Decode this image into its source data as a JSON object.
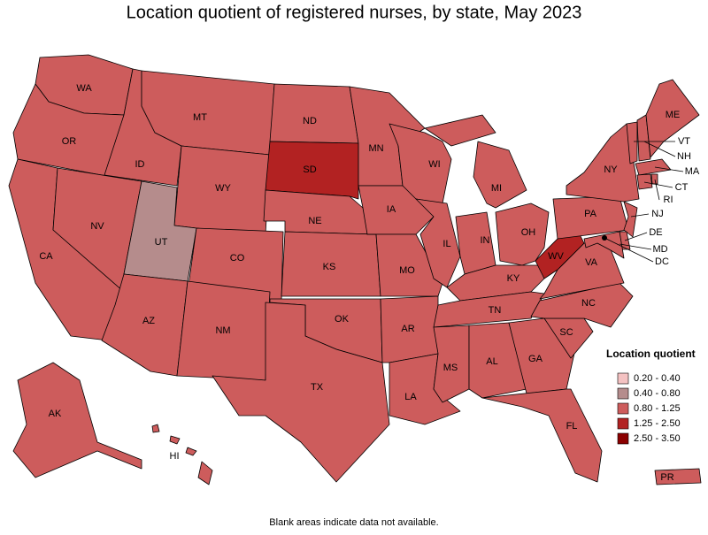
{
  "map": {
    "title": "Location quotient of registered nurses, by state, May 2023",
    "legend": {
      "title": "Location quotient",
      "items": [
        {
          "label": "0.20 - 0.40",
          "color": "#f4c2c2"
        },
        {
          "label": "0.40 - 0.80",
          "color": "#b58c8c"
        },
        {
          "label": "0.80 - 1.25",
          "color": "#cd5c5c"
        },
        {
          "label": "1.25 - 2.50",
          "color": "#b22222"
        },
        {
          "label": "2.50 - 3.50",
          "color": "#8b0000"
        }
      ]
    },
    "states": [
      {
        "label": "WA",
        "range": "0.80 - 1.25"
      },
      {
        "label": "OR",
        "range": "0.80 - 1.25"
      },
      {
        "label": "CA",
        "range": "0.80 - 1.25"
      },
      {
        "label": "NV",
        "range": "0.80 - 1.25"
      },
      {
        "label": "ID",
        "range": "0.80 - 1.25"
      },
      {
        "label": "MT",
        "range": "0.80 - 1.25"
      },
      {
        "label": "WY",
        "range": "0.80 - 1.25"
      },
      {
        "label": "UT",
        "range": "0.40 - 0.80"
      },
      {
        "label": "CO",
        "range": "0.80 - 1.25"
      },
      {
        "label": "AZ",
        "range": "0.80 - 1.25"
      },
      {
        "label": "NM",
        "range": "0.80 - 1.25"
      },
      {
        "label": "ND",
        "range": "0.80 - 1.25"
      },
      {
        "label": "SD",
        "range": "1.25 - 2.50"
      },
      {
        "label": "NE",
        "range": "0.80 - 1.25"
      },
      {
        "label": "KS",
        "range": "0.80 - 1.25"
      },
      {
        "label": "OK",
        "range": "0.80 - 1.25"
      },
      {
        "label": "TX",
        "range": "0.80 - 1.25"
      },
      {
        "label": "MN",
        "range": "0.80 - 1.25"
      },
      {
        "label": "IA",
        "range": "0.80 - 1.25"
      },
      {
        "label": "MO",
        "range": "0.80 - 1.25"
      },
      {
        "label": "AR",
        "range": "0.80 - 1.25"
      },
      {
        "label": "LA",
        "range": "0.80 - 1.25"
      },
      {
        "label": "WI",
        "range": "0.80 - 1.25"
      },
      {
        "label": "IL",
        "range": "0.80 - 1.25"
      },
      {
        "label": "IN",
        "range": "0.80 - 1.25"
      },
      {
        "label": "MI",
        "range": "0.80 - 1.25"
      },
      {
        "label": "OH",
        "range": "0.80 - 1.25"
      },
      {
        "label": "KY",
        "range": "0.80 - 1.25"
      },
      {
        "label": "TN",
        "range": "0.80 - 1.25"
      },
      {
        "label": "MS",
        "range": "0.80 - 1.25"
      },
      {
        "label": "AL",
        "range": "0.80 - 1.25"
      },
      {
        "label": "GA",
        "range": "0.80 - 1.25"
      },
      {
        "label": "FL",
        "range": "0.80 - 1.25"
      },
      {
        "label": "SC",
        "range": "0.80 - 1.25"
      },
      {
        "label": "NC",
        "range": "0.80 - 1.25"
      },
      {
        "label": "VA",
        "range": "0.80 - 1.25"
      },
      {
        "label": "WV",
        "range": "1.25 - 2.50"
      },
      {
        "label": "PA",
        "range": "0.80 - 1.25"
      },
      {
        "label": "NY",
        "range": "0.80 - 1.25"
      },
      {
        "label": "VT",
        "range": "0.80 - 1.25"
      },
      {
        "label": "NH",
        "range": "0.80 - 1.25"
      },
      {
        "label": "ME",
        "range": "0.80 - 1.25"
      },
      {
        "label": "MA",
        "range": "0.80 - 1.25"
      },
      {
        "label": "CT",
        "range": "0.80 - 1.25"
      },
      {
        "label": "RI",
        "range": "0.80 - 1.25"
      },
      {
        "label": "NJ",
        "range": "0.80 - 1.25"
      },
      {
        "label": "DE",
        "range": "0.80 - 1.25"
      },
      {
        "label": "MD",
        "range": "0.80 - 1.25"
      },
      {
        "label": "DC",
        "range": "0.80 - 1.25"
      },
      {
        "label": "AK",
        "range": "0.80 - 1.25"
      },
      {
        "label": "HI",
        "range": "0.80 - 1.25"
      },
      {
        "label": "PR",
        "range": "0.80 - 1.25"
      }
    ],
    "footnote": "Blank areas indicate data not available."
  }
}
